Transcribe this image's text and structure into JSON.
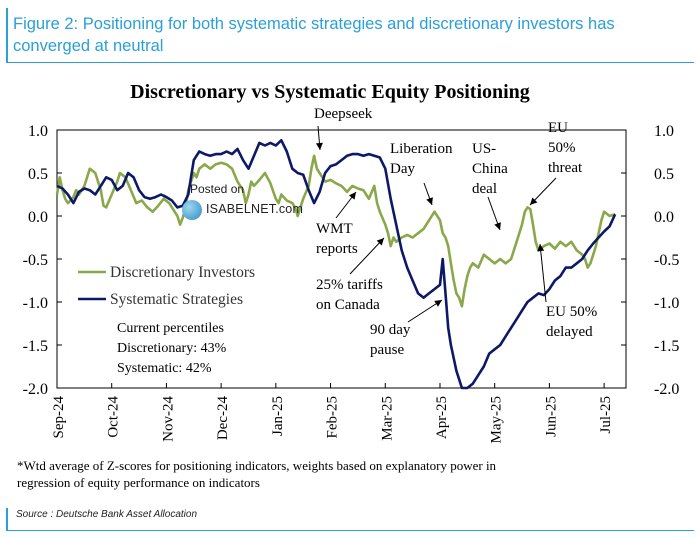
{
  "figure": {
    "title": "Figure 2: Positioning for both systematic strategies and discretionary investors has converged at neutral",
    "source": "Source : Deutsche Bank Asset Allocation",
    "footnote_line1": "*Wtd average of Z-scores for positioning indicators, weights based on explanatory power in",
    "footnote_line2": "regression of equity performance on indicators"
  },
  "watermark": {
    "posted": "Posted on",
    "site": "ISABELNET.com",
    "icon": "globe-icon"
  },
  "colors": {
    "discretionary": "#8aa84a",
    "systematic": "#0d1966",
    "title": "#2a9fd8"
  },
  "chart_data": {
    "type": "line",
    "title": "Discretionary  vs Systematic Equity Positioning",
    "xlabel": "",
    "ylabel": "",
    "ylim": [
      -2.0,
      1.0
    ],
    "xlim": [
      0,
      10.4
    ],
    "y_ticks": [
      "1.0",
      "0.5",
      "0.0",
      "-0.5",
      "-1.0",
      "-1.5",
      "-2.0"
    ],
    "y_tick_values": [
      1.0,
      0.5,
      0.0,
      -0.5,
      -1.0,
      -1.5,
      -2.0
    ],
    "x_tick_labels": [
      "Sep-24",
      "Oct-24",
      "Nov-24",
      "Dec-24",
      "Jan-25",
      "Feb-25",
      "Mar-25",
      "Apr-25",
      "May-25",
      "Jun-25",
      "Jul-25"
    ],
    "legend": {
      "placement": "center-left",
      "entries": [
        "Discretionary Investors",
        "Systematic Strategies"
      ]
    },
    "percentiles": {
      "heading": "Current percentiles",
      "discretionary": "Discretionary: 43%",
      "systematic": "Systematic: 42%"
    },
    "annotations": [
      {
        "id": "deepseek",
        "lines": [
          "Deepseek"
        ]
      },
      {
        "id": "wmt",
        "lines": [
          "WMT",
          "reports"
        ]
      },
      {
        "id": "tariffs",
        "lines": [
          "25% tariffs",
          "on Canada"
        ]
      },
      {
        "id": "liberation",
        "lines": [
          "Liberation",
          "Day"
        ]
      },
      {
        "id": "pause",
        "lines": [
          "90 day",
          "pause"
        ]
      },
      {
        "id": "uschina",
        "lines": [
          "US-",
          "China",
          "deal"
        ]
      },
      {
        "id": "eu50",
        "lines": [
          "EU",
          "50%",
          "threat"
        ]
      },
      {
        "id": "eudelayed",
        "lines": [
          "EU 50%",
          "delayed"
        ]
      }
    ],
    "series": [
      {
        "name": "Discretionary Investors",
        "x": [
          0,
          0.05,
          0.1,
          0.15,
          0.2,
          0.25,
          0.3,
          0.35,
          0.4,
          0.5,
          0.6,
          0.7,
          0.8,
          0.85,
          0.9,
          1.0,
          1.1,
          1.15,
          1.25,
          1.35,
          1.45,
          1.55,
          1.65,
          1.75,
          1.85,
          1.95,
          2.05,
          2.15,
          2.2,
          2.25,
          2.3,
          2.35,
          2.4,
          2.45,
          2.5,
          2.55,
          2.6,
          2.7,
          2.8,
          2.9,
          3.0,
          3.1,
          3.2,
          3.3,
          3.4,
          3.45,
          3.5,
          3.55,
          3.6,
          3.7,
          3.8,
          3.9,
          4.0,
          4.05,
          4.1,
          4.2,
          4.3,
          4.35,
          4.4,
          4.5,
          4.6,
          4.65,
          4.7,
          4.75,
          4.8,
          4.85,
          4.9,
          5.0,
          5.1,
          5.2,
          5.3,
          5.4,
          5.5,
          5.6,
          5.7,
          5.8,
          5.85,
          5.9,
          6.0,
          6.05,
          6.1,
          6.15,
          6.2,
          6.3,
          6.4,
          6.5,
          6.6,
          6.7,
          6.8,
          6.9,
          7.0,
          7.05,
          7.1,
          7.15,
          7.2,
          7.25,
          7.3,
          7.35,
          7.4,
          7.45,
          7.5,
          7.55,
          7.6,
          7.7,
          7.8,
          7.9,
          8.0,
          8.1,
          8.2,
          8.3,
          8.4,
          8.5,
          8.55,
          8.6,
          8.65,
          8.7,
          8.75,
          8.8,
          8.9,
          9.0,
          9.1,
          9.2,
          9.3,
          9.4,
          9.5,
          9.6,
          9.65,
          9.7,
          9.75,
          9.8,
          9.85,
          9.9,
          9.95,
          10.0,
          10.1,
          10.2
        ],
        "values": [
          0.25,
          0.45,
          0.3,
          0.2,
          0.15,
          0.18,
          0.22,
          0.3,
          0.25,
          0.35,
          0.55,
          0.5,
          0.3,
          0.12,
          0.1,
          0.25,
          0.4,
          0.5,
          0.45,
          0.3,
          0.15,
          0.18,
          0.1,
          0.05,
          0.12,
          0.2,
          0.15,
          0.05,
          0.0,
          -0.1,
          -0.02,
          0.1,
          0.3,
          0.4,
          0.5,
          0.45,
          0.55,
          0.6,
          0.55,
          0.6,
          0.62,
          0.6,
          0.55,
          0.4,
          0.3,
          0.15,
          0.25,
          0.4,
          0.35,
          0.42,
          0.5,
          0.38,
          0.2,
          0.15,
          0.25,
          0.18,
          0.15,
          0.1,
          0.0,
          0.2,
          0.35,
          0.55,
          0.7,
          0.55,
          0.5,
          0.45,
          0.4,
          0.42,
          0.38,
          0.35,
          0.28,
          0.35,
          0.32,
          0.3,
          0.2,
          0.35,
          0.15,
          0.05,
          -0.1,
          -0.2,
          -0.35,
          -0.25,
          -0.3,
          -0.25,
          -0.22,
          -0.25,
          -0.2,
          -0.15,
          -0.05,
          0.05,
          -0.05,
          -0.2,
          -0.25,
          -0.35,
          -0.55,
          -0.75,
          -0.9,
          -0.95,
          -1.05,
          -0.85,
          -0.7,
          -0.6,
          -0.55,
          -0.6,
          -0.45,
          -0.5,
          -0.55,
          -0.5,
          -0.55,
          -0.5,
          -0.3,
          -0.1,
          0.05,
          0.1,
          0.08,
          -0.1,
          -0.3,
          -0.4,
          -0.35,
          -0.32,
          -0.38,
          -0.3,
          -0.35,
          -0.3,
          -0.4,
          -0.45,
          -0.5,
          -0.6,
          -0.55,
          -0.45,
          -0.35,
          -0.2,
          -0.05,
          0.05,
          0.0,
          0.02
        ]
      },
      {
        "name": "Systematic Strategies",
        "x": [
          0,
          0.1,
          0.2,
          0.3,
          0.4,
          0.5,
          0.6,
          0.7,
          0.8,
          0.9,
          1.0,
          1.1,
          1.2,
          1.3,
          1.4,
          1.5,
          1.6,
          1.7,
          1.8,
          1.9,
          2.0,
          2.1,
          2.2,
          2.3,
          2.4,
          2.45,
          2.5,
          2.6,
          2.7,
          2.8,
          2.9,
          3.0,
          3.1,
          3.2,
          3.3,
          3.4,
          3.5,
          3.6,
          3.7,
          3.8,
          3.9,
          4.0,
          4.1,
          4.2,
          4.3,
          4.4,
          4.5,
          4.6,
          4.7,
          4.8,
          4.9,
          5.0,
          5.1,
          5.2,
          5.3,
          5.4,
          5.5,
          5.6,
          5.7,
          5.8,
          5.9,
          6.0,
          6.1,
          6.2,
          6.3,
          6.4,
          6.5,
          6.6,
          6.7,
          6.8,
          6.9,
          7.0,
          7.05,
          7.1,
          7.15,
          7.2,
          7.3,
          7.4,
          7.5,
          7.6,
          7.7,
          7.8,
          7.9,
          8.0,
          8.1,
          8.2,
          8.3,
          8.4,
          8.5,
          8.6,
          8.7,
          8.8,
          8.9,
          9.0,
          9.1,
          9.2,
          9.3,
          9.4,
          9.5,
          9.6,
          9.7,
          9.8,
          9.9,
          10.0,
          10.1,
          10.2
        ],
        "values": [
          0.35,
          0.32,
          0.25,
          0.15,
          0.28,
          0.32,
          0.3,
          0.25,
          0.35,
          0.45,
          0.42,
          0.3,
          0.35,
          0.5,
          0.45,
          0.3,
          0.22,
          0.2,
          0.22,
          0.25,
          0.22,
          0.18,
          0.1,
          0.12,
          0.25,
          0.45,
          0.65,
          0.75,
          0.72,
          0.7,
          0.72,
          0.72,
          0.75,
          0.72,
          0.78,
          0.65,
          0.55,
          0.7,
          0.85,
          0.82,
          0.85,
          0.82,
          0.88,
          0.75,
          0.55,
          0.5,
          0.48,
          0.3,
          0.15,
          0.28,
          0.5,
          0.58,
          0.6,
          0.65,
          0.7,
          0.72,
          0.72,
          0.7,
          0.72,
          0.7,
          0.68,
          0.55,
          0.2,
          -0.1,
          -0.4,
          -0.6,
          -0.75,
          -0.9,
          -0.95,
          -0.9,
          -0.85,
          -0.8,
          -0.5,
          -0.9,
          -1.3,
          -1.5,
          -1.8,
          -2.0,
          -2.0,
          -1.95,
          -1.85,
          -1.75,
          -1.6,
          -1.55,
          -1.5,
          -1.4,
          -1.3,
          -1.2,
          -1.1,
          -1.0,
          -0.95,
          -0.9,
          -0.92,
          -0.85,
          -0.75,
          -0.7,
          -0.6,
          -0.6,
          -0.55,
          -0.5,
          -0.4,
          -0.32,
          -0.25,
          -0.18,
          -0.12,
          0.02
        ]
      }
    ]
  }
}
